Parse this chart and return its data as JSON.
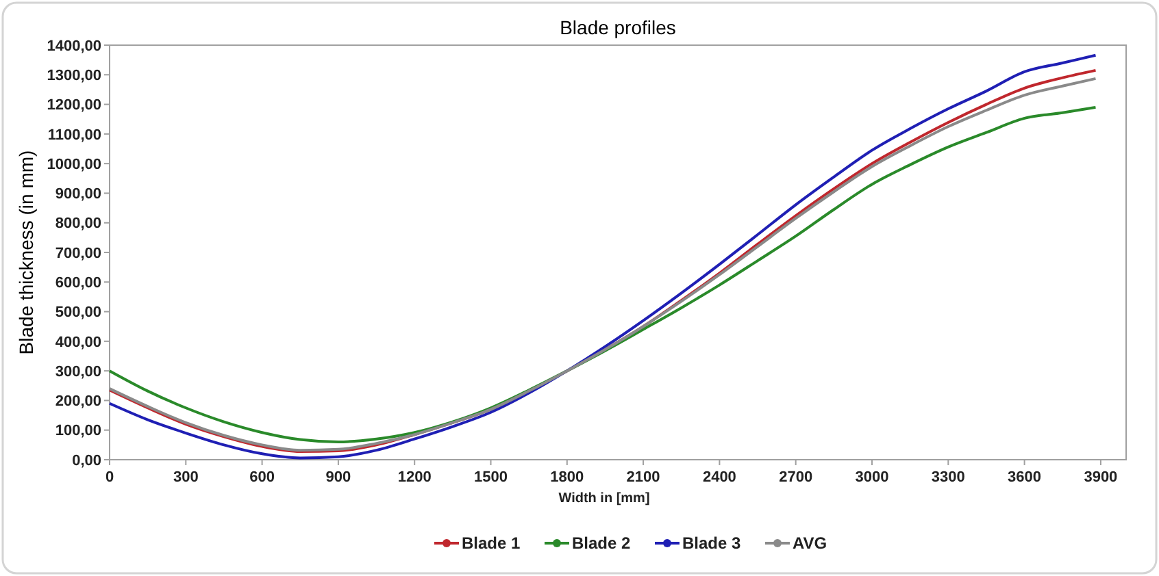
{
  "chart_data": {
    "type": "line",
    "title": "Blade profiles",
    "xlabel": "Width in [mm]",
    "ylabel": "Blade thickness (in mm)",
    "x": [
      0,
      150,
      300,
      450,
      600,
      750,
      900,
      1050,
      1200,
      1350,
      1500,
      1650,
      1800,
      1950,
      2100,
      2250,
      2400,
      2550,
      2700,
      2850,
      3000,
      3150,
      3300,
      3450,
      3600,
      3750,
      3880
    ],
    "series": [
      {
        "name": "Blade 1",
        "color": "#c0272d",
        "values": [
          235,
          175,
          120,
          78,
          45,
          28,
          30,
          50,
          85,
          125,
          170,
          232,
          300,
          372,
          450,
          538,
          630,
          728,
          824,
          915,
          1000,
          1072,
          1139,
          1200,
          1255,
          1290,
          1315
        ]
      },
      {
        "name": "Blade 2",
        "color": "#2a8a2a",
        "values": [
          300,
          232,
          175,
          128,
          92,
          68,
          60,
          70,
          92,
          128,
          175,
          235,
          300,
          368,
          440,
          513,
          590,
          672,
          755,
          845,
          930,
          996,
          1056,
          1105,
          1153,
          1172,
          1190
        ]
      },
      {
        "name": "Blade 3",
        "color": "#1f1fb4",
        "values": [
          190,
          135,
          90,
          50,
          20,
          6,
          10,
          32,
          70,
          112,
          160,
          225,
          300,
          382,
          470,
          563,
          660,
          760,
          861,
          955,
          1045,
          1118,
          1185,
          1245,
          1310,
          1340,
          1366
        ]
      },
      {
        "name": "AVG",
        "color": "#8a8a8a",
        "values": [
          240,
          180,
          125,
          82,
          50,
          32,
          35,
          55,
          85,
          125,
          170,
          232,
          300,
          372,
          450,
          535,
          625,
          720,
          815,
          905,
          990,
          1060,
          1125,
          1180,
          1231,
          1262,
          1287
        ]
      }
    ],
    "xlim": [
      0,
      4000
    ],
    "xticks": [
      0,
      300,
      600,
      900,
      1200,
      1500,
      1800,
      2100,
      2400,
      2700,
      3000,
      3300,
      3600,
      3900
    ],
    "ylim": [
      0,
      1400
    ],
    "yticks": [
      {
        "value": 0,
        "label": "0,00"
      },
      {
        "value": 100,
        "label": "100,00"
      },
      {
        "value": 200,
        "label": "200,00"
      },
      {
        "value": 300,
        "label": "300,00"
      },
      {
        "value": 400,
        "label": "400,00"
      },
      {
        "value": 500,
        "label": "500,00"
      },
      {
        "value": 600,
        "label": "600,00"
      },
      {
        "value": 700,
        "label": "700,00"
      },
      {
        "value": 800,
        "label": "800,00"
      },
      {
        "value": 900,
        "label": "900,00"
      },
      {
        "value": 1000,
        "label": "1000,00"
      },
      {
        "value": 1100,
        "label": "1100,00"
      },
      {
        "value": 1200,
        "label": "1200,00"
      },
      {
        "value": 1300,
        "label": "1300,00"
      },
      {
        "value": 1400,
        "label": "1400,00"
      }
    ],
    "legend": "bottom"
  }
}
